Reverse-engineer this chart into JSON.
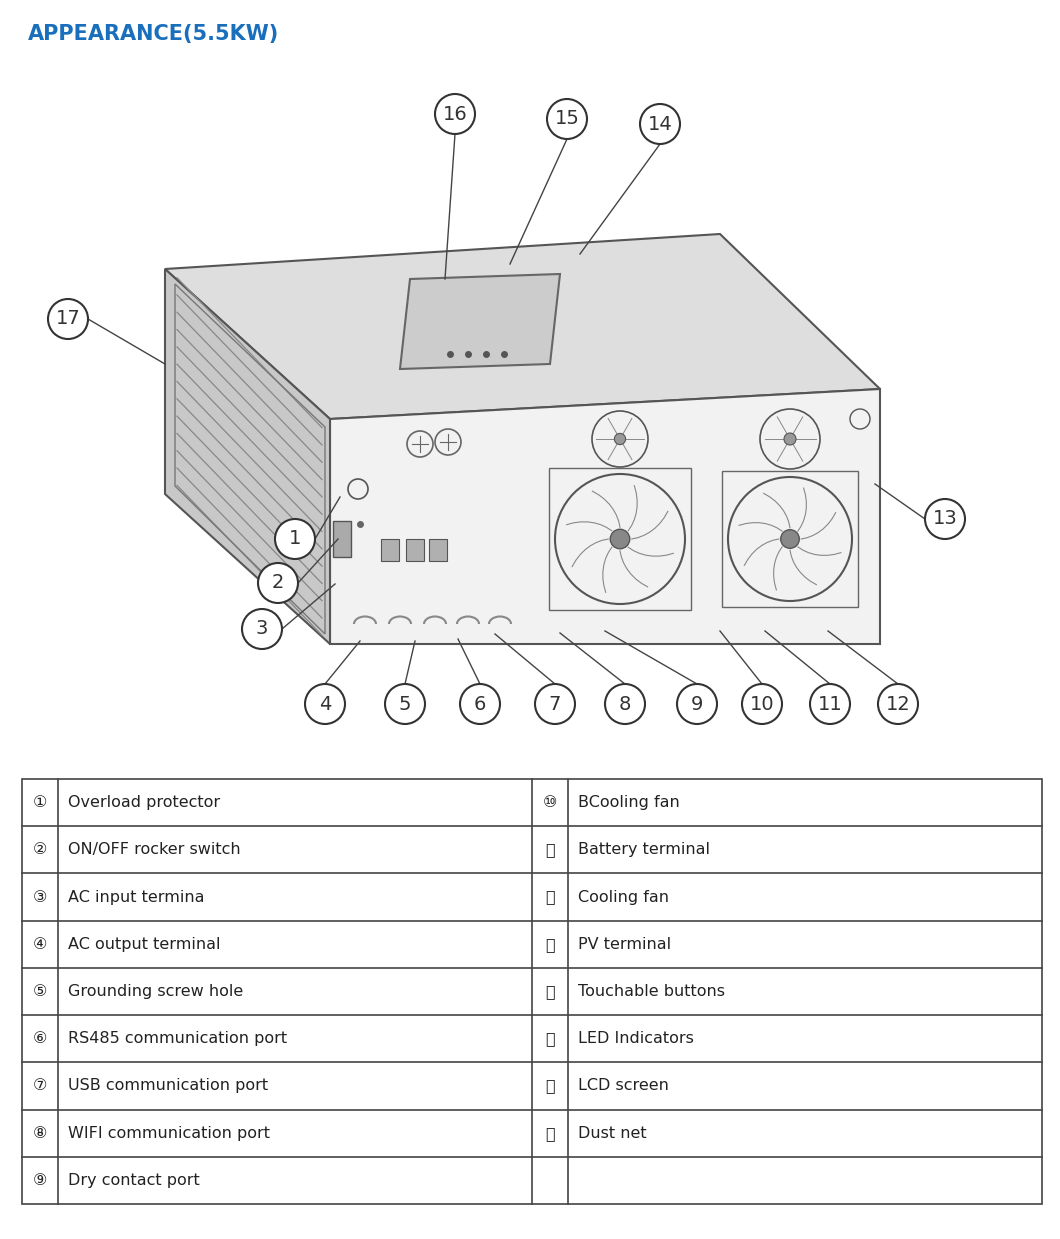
{
  "title": "APPEARANCE(5.5KW)",
  "title_color": "#1a6fbd",
  "title_fontsize": 15,
  "bg_color": "#ffffff",
  "table_left": [
    [
      "①",
      "Overload protector"
    ],
    [
      "②",
      "ON/OFF rocker switch"
    ],
    [
      "③",
      "AC input termina"
    ],
    [
      "④",
      "AC output terminal"
    ],
    [
      "⑤",
      "Grounding screw hole"
    ],
    [
      "⑥",
      "RS485 communication port"
    ],
    [
      "⑦",
      "USB communication port"
    ],
    [
      "⑧",
      "WIFI communication port"
    ],
    [
      "⑨",
      "Dry contact port"
    ]
  ],
  "table_right": [
    [
      "⑩",
      "BCooling fan"
    ],
    [
      "⑪",
      "Battery terminal"
    ],
    [
      "⑫",
      "Cooling fan"
    ],
    [
      "⑬",
      "PV terminal"
    ],
    [
      "⑭",
      "Touchable buttons"
    ],
    [
      "⑮",
      "LED Indicators"
    ],
    [
      "⑯",
      "LCD screen"
    ],
    [
      "⑰",
      "Dust net"
    ],
    [
      "",
      ""
    ]
  ],
  "circle_color": "#333333",
  "line_color": "#444444",
  "text_color": "#222222",
  "table_border_color": "#444444",
  "table_fontsize": 11.5,
  "number_fontsize": 14
}
